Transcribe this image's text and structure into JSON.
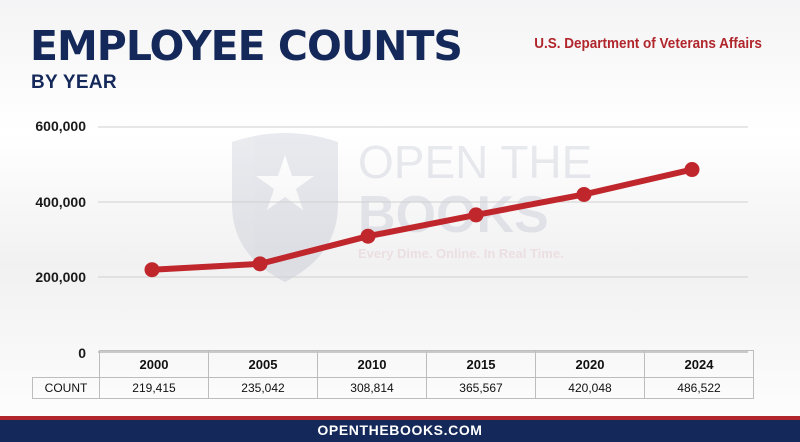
{
  "header": {
    "title": "EMPLOYEE COUNTS",
    "subtitle": "BY YEAR",
    "agency": "U.S. Department of Veterans Affairs"
  },
  "watermark": {
    "line1": "OPEN THE",
    "line2": "BOOKS",
    "tagline": "Every Dime. Online. In Real Time."
  },
  "footer": {
    "text": "OPENTHEBOOKS.COM"
  },
  "table": {
    "row_label": "COUNT"
  },
  "colors": {
    "line": "#c0272d",
    "title": "#14285a",
    "accent": "#b0262c"
  },
  "chart_data": {
    "type": "line",
    "title": "EMPLOYEE COUNTS BY YEAR",
    "xlabel": "",
    "ylabel": "",
    "categories": [
      "2000",
      "2005",
      "2010",
      "2015",
      "2020",
      "2024"
    ],
    "series": [
      {
        "name": "COUNT",
        "values": [
          219415,
          235042,
          308814,
          365567,
          420048,
          486522
        ]
      }
    ],
    "value_labels": [
      "219,415",
      "235,042",
      "308,814",
      "365,567",
      "420,048",
      "486,522"
    ],
    "y_ticks": [
      0,
      200000,
      400000,
      600000
    ],
    "y_tick_labels": [
      "0",
      "200,000",
      "400,000",
      "600,000"
    ],
    "ylim": [
      0,
      600000
    ],
    "grid": true,
    "legend": "none"
  }
}
